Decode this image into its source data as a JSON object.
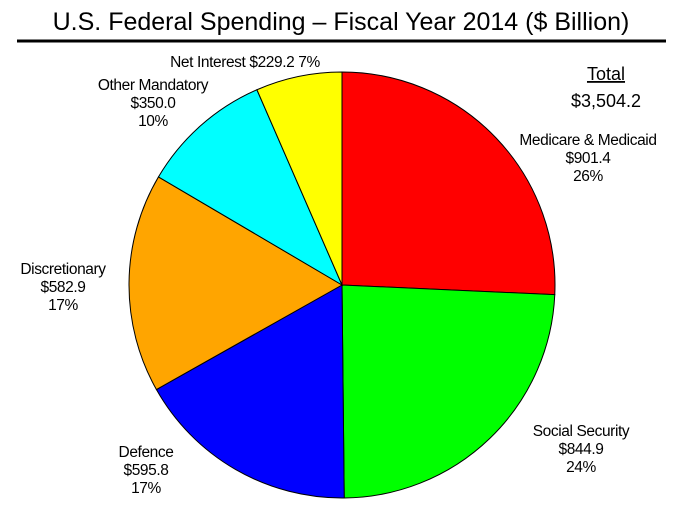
{
  "chart_data": {
    "type": "pie",
    "title": "U.S. Federal Spending – Fiscal Year 2014 ($ Billion)",
    "total_heading": "Total",
    "total_value": "$3,504.2",
    "slices": [
      {
        "name": "Medicare & Medicaid",
        "value": 901.4,
        "value_label": "$901.4",
        "percent_label": "26%",
        "color": "#ff0000"
      },
      {
        "name": "Social Security",
        "value": 844.9,
        "value_label": "$844.9",
        "percent_label": "24%",
        "color": "#00ff00"
      },
      {
        "name": "Defence",
        "value": 595.8,
        "value_label": "$595.8",
        "percent_label": "17%",
        "color": "#0000ff"
      },
      {
        "name": "Discretionary",
        "value": 582.9,
        "value_label": "$582.9",
        "percent_label": "17%",
        "color": "#ffa500"
      },
      {
        "name": "Other Mandatory",
        "value": 350.0,
        "value_label": "$350.0",
        "percent_label": "10%",
        "color": "#00ffff"
      },
      {
        "name": "Net Interest",
        "value": 229.2,
        "value_label": "$229.2",
        "percent_label": "7%",
        "color": "#ffff00"
      }
    ]
  }
}
